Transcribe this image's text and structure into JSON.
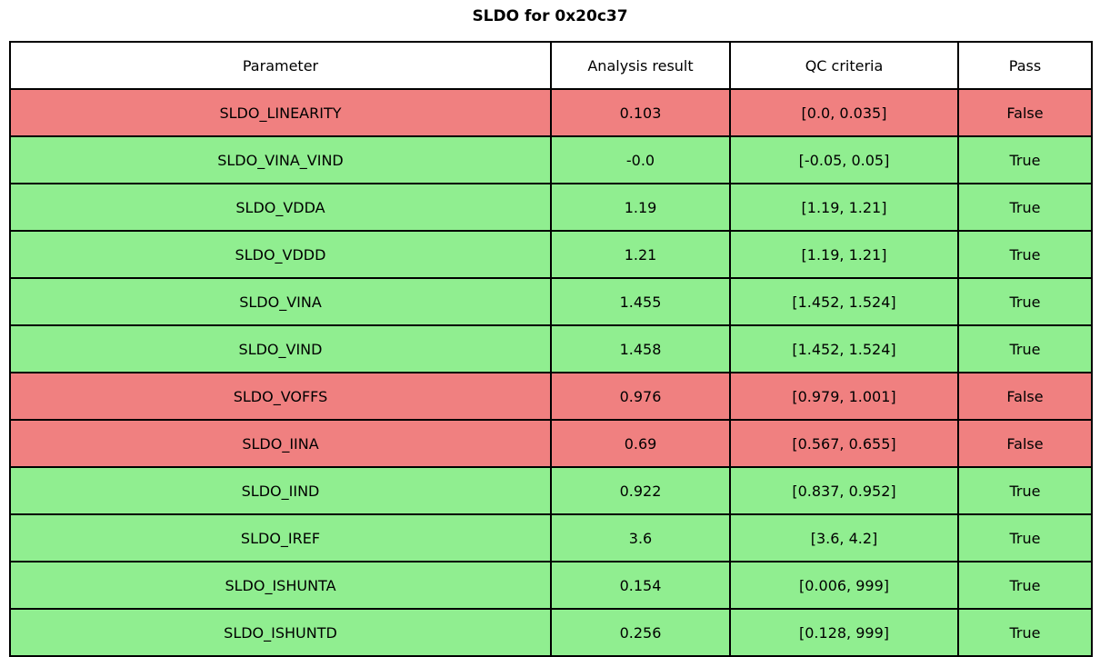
{
  "title": "SLDO for 0x20c37",
  "colors": {
    "pass_true_bg": "#90ee90",
    "pass_false_bg": "#f08080",
    "header_bg": "#ffffff",
    "border": "#000000",
    "text": "#000000"
  },
  "chart_data": {
    "type": "table",
    "title": "SLDO for 0x20c37",
    "columns": [
      "Parameter",
      "Analysis result",
      "QC criteria",
      "Pass"
    ],
    "rows": [
      {
        "parameter": "SLDO_LINEARITY",
        "analysis_result": "0.103",
        "qc_criteria": "[0.0, 0.035]",
        "pass": "False"
      },
      {
        "parameter": "SLDO_VINA_VIND",
        "analysis_result": "-0.0",
        "qc_criteria": "[-0.05, 0.05]",
        "pass": "True"
      },
      {
        "parameter": "SLDO_VDDA",
        "analysis_result": "1.19",
        "qc_criteria": "[1.19, 1.21]",
        "pass": "True"
      },
      {
        "parameter": "SLDO_VDDD",
        "analysis_result": "1.21",
        "qc_criteria": "[1.19, 1.21]",
        "pass": "True"
      },
      {
        "parameter": "SLDO_VINA",
        "analysis_result": "1.455",
        "qc_criteria": "[1.452, 1.524]",
        "pass": "True"
      },
      {
        "parameter": "SLDO_VIND",
        "analysis_result": "1.458",
        "qc_criteria": "[1.452, 1.524]",
        "pass": "True"
      },
      {
        "parameter": "SLDO_VOFFS",
        "analysis_result": "0.976",
        "qc_criteria": "[0.979, 1.001]",
        "pass": "False"
      },
      {
        "parameter": "SLDO_IINA",
        "analysis_result": "0.69",
        "qc_criteria": "[0.567, 0.655]",
        "pass": "False"
      },
      {
        "parameter": "SLDO_IIND",
        "analysis_result": "0.922",
        "qc_criteria": "[0.837, 0.952]",
        "pass": "True"
      },
      {
        "parameter": "SLDO_IREF",
        "analysis_result": "3.6",
        "qc_criteria": "[3.6, 4.2]",
        "pass": "True"
      },
      {
        "parameter": "SLDO_ISHUNTA",
        "analysis_result": "0.154",
        "qc_criteria": "[0.006, 999]",
        "pass": "True"
      },
      {
        "parameter": "SLDO_ISHUNTD",
        "analysis_result": "0.256",
        "qc_criteria": "[0.128, 999]",
        "pass": "True"
      }
    ]
  }
}
